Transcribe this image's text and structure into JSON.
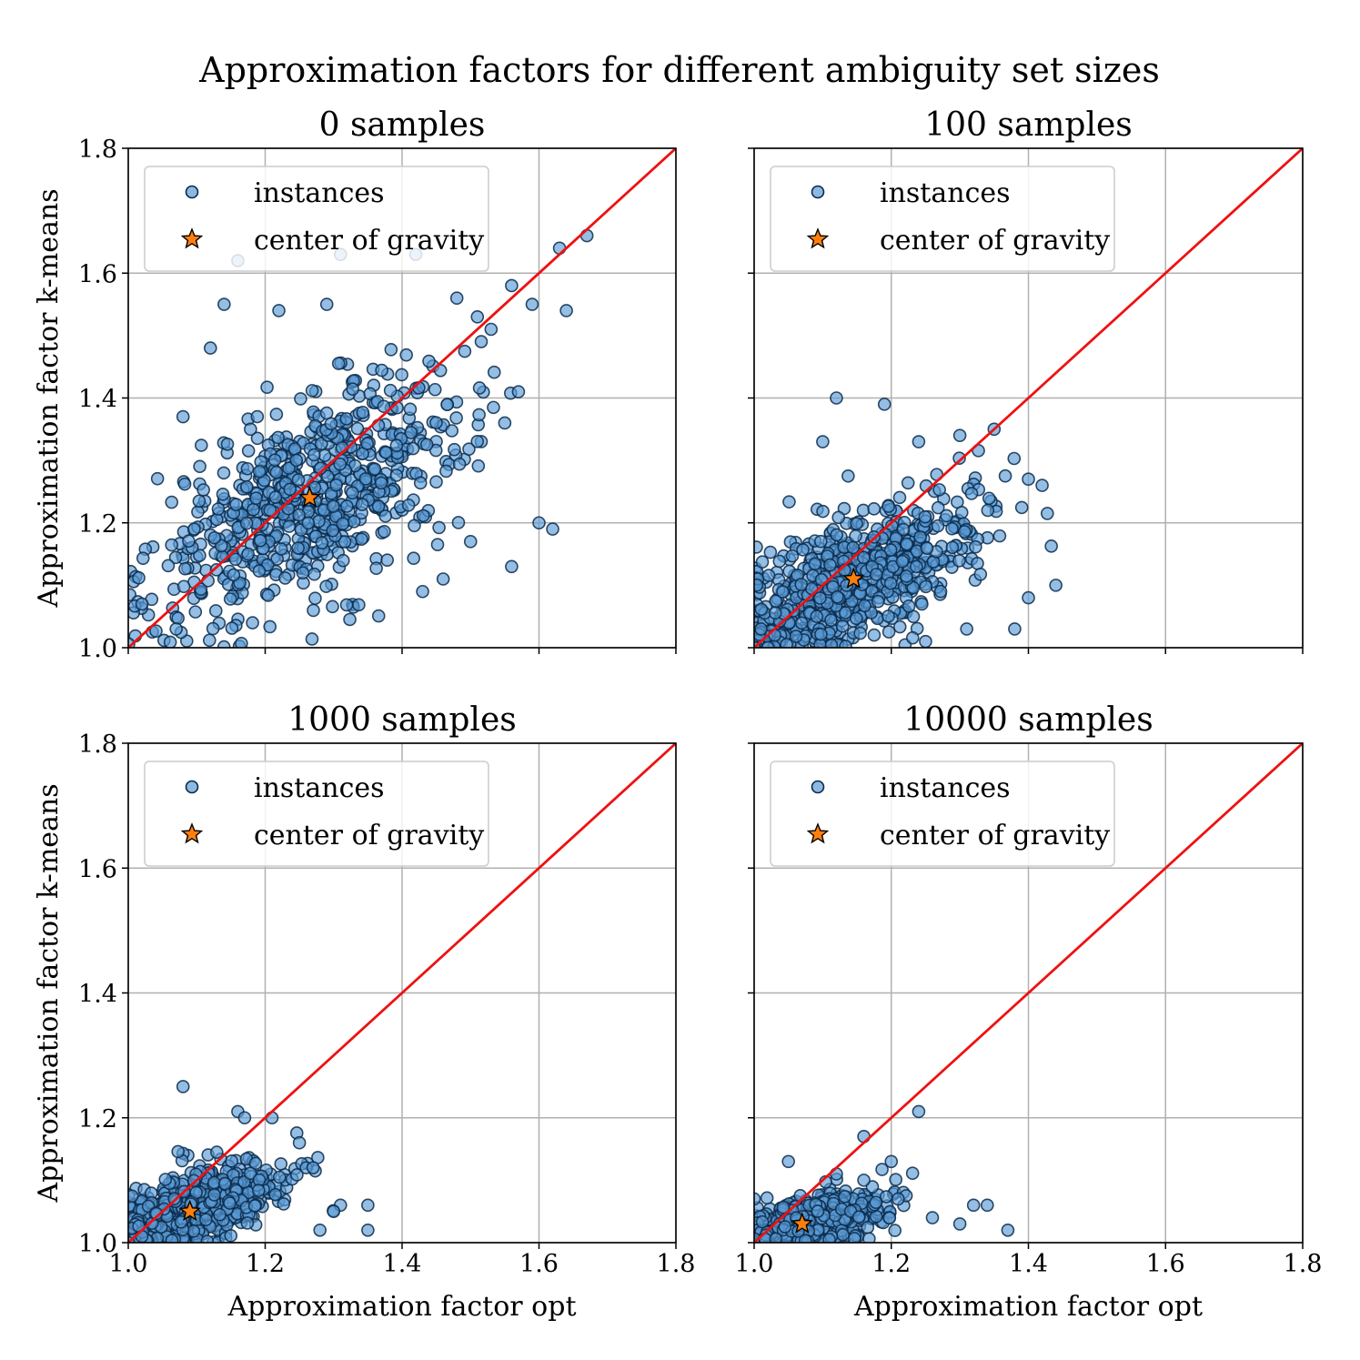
{
  "figure_title": "Approximation factors for different ambiguity set sizes",
  "colors": {
    "points_fill": "#5b9bd5",
    "points_edge": "#0b2a4a",
    "diagonal": "#ee1111",
    "star_fill": "#ff7f0e",
    "grid": "#b0b0b0"
  },
  "chart_data": [
    {
      "type": "scatter",
      "title": "0 samples",
      "xlabel": "",
      "ylabel": "Approximation factor k-means",
      "xlim": [
        1.0,
        1.8
      ],
      "ylim": [
        1.0,
        1.8
      ],
      "xticks": [
        "1.0",
        "1.2",
        "1.4",
        "1.6",
        "1.8"
      ],
      "yticks": [
        "1.0",
        "1.2",
        "1.4",
        "1.6",
        "1.8"
      ],
      "xticklabels_visible": false,
      "grid": true,
      "legend": {
        "placement": "top-left",
        "entries": [
          "instances",
          "center of gravity"
        ]
      },
      "reference_line": {
        "from": [
          1.0,
          1.0
        ],
        "to": [
          1.8,
          1.8
        ]
      },
      "center_of_gravity": [
        1.265,
        1.24
      ],
      "points_summary": {
        "center": [
          1.265,
          1.24
        ],
        "spread": [
          0.115,
          0.095
        ],
        "count": 700
      },
      "points": [
        [
          1.67,
          1.66
        ],
        [
          1.63,
          1.64
        ],
        [
          1.64,
          1.54
        ],
        [
          1.59,
          1.55
        ],
        [
          1.56,
          1.58
        ],
        [
          1.42,
          1.63
        ],
        [
          1.31,
          1.63
        ],
        [
          1.16,
          1.62
        ],
        [
          1.14,
          1.55
        ],
        [
          1.22,
          1.54
        ],
        [
          1.29,
          1.55
        ],
        [
          1.57,
          1.41
        ],
        [
          1.6,
          1.2
        ],
        [
          1.62,
          1.19
        ],
        [
          1.56,
          1.13
        ],
        [
          1.5,
          1.17
        ],
        [
          1.07,
          1.03
        ],
        [
          1.02,
          1.07
        ],
        [
          1.12,
          1.48
        ],
        [
          1.08,
          1.37
        ],
        [
          1.43,
          1.09
        ],
        [
          1.46,
          1.11
        ],
        [
          1.48,
          1.56
        ],
        [
          1.51,
          1.53
        ],
        [
          1.53,
          1.51
        ],
        [
          1.55,
          1.36
        ]
      ]
    },
    {
      "type": "scatter",
      "title": "100 samples",
      "xlabel": "",
      "ylabel": "",
      "xlim": [
        1.0,
        1.8
      ],
      "ylim": [
        1.0,
        1.8
      ],
      "xticks": [
        "1.0",
        "1.2",
        "1.4",
        "1.6",
        "1.8"
      ],
      "yticks": [
        "1.0",
        "1.2",
        "1.4",
        "1.6",
        "1.8"
      ],
      "xticklabels_visible": false,
      "yticklabels_visible": false,
      "grid": true,
      "legend": {
        "placement": "top-left",
        "entries": [
          "instances",
          "center of gravity"
        ]
      },
      "reference_line": {
        "from": [
          1.0,
          1.0
        ],
        "to": [
          1.8,
          1.8
        ]
      },
      "center_of_gravity": [
        1.145,
        1.11
      ],
      "points_summary": {
        "center": [
          1.145,
          1.11
        ],
        "spread": [
          0.09,
          0.065
        ],
        "count": 700
      },
      "points": [
        [
          1.12,
          1.4
        ],
        [
          1.19,
          1.39
        ],
        [
          1.35,
          1.35
        ],
        [
          1.3,
          1.34
        ],
        [
          1.24,
          1.33
        ],
        [
          1.1,
          1.33
        ],
        [
          1.4,
          1.27
        ],
        [
          1.42,
          1.26
        ],
        [
          1.44,
          1.1
        ],
        [
          1.4,
          1.08
        ],
        [
          1.38,
          1.03
        ],
        [
          1.31,
          1.03
        ],
        [
          1.25,
          1.01
        ],
        [
          1.0,
          1.0
        ],
        [
          1.01,
          1.03
        ],
        [
          1.03,
          1.02
        ]
      ]
    },
    {
      "type": "scatter",
      "title": "1000 samples",
      "xlabel": "Approximation factor opt",
      "ylabel": "Approximation factor k-means",
      "xlim": [
        1.0,
        1.8
      ],
      "ylim": [
        1.0,
        1.8
      ],
      "xticks": [
        "1.0",
        "1.2",
        "1.4",
        "1.6",
        "1.8"
      ],
      "yticks": [
        "1.0",
        "1.2",
        "1.4",
        "1.6",
        "1.8"
      ],
      "grid": true,
      "legend": {
        "placement": "top-left",
        "entries": [
          "instances",
          "center of gravity"
        ]
      },
      "reference_line": {
        "from": [
          1.0,
          1.0
        ],
        "to": [
          1.8,
          1.8
        ]
      },
      "center_of_gravity": [
        1.09,
        1.05
      ],
      "points_summary": {
        "center": [
          1.09,
          1.05
        ],
        "spread": [
          0.065,
          0.038
        ],
        "count": 700
      },
      "points": [
        [
          1.08,
          1.25
        ],
        [
          1.16,
          1.21
        ],
        [
          1.17,
          1.2
        ],
        [
          1.21,
          1.2
        ],
        [
          1.25,
          1.16
        ],
        [
          1.26,
          1.12
        ],
        [
          1.27,
          1.12
        ],
        [
          1.35,
          1.06
        ],
        [
          1.35,
          1.02
        ],
        [
          1.31,
          1.06
        ],
        [
          1.3,
          1.05
        ],
        [
          1.28,
          1.02
        ],
        [
          1.0,
          1.0
        ],
        [
          1.02,
          1.01
        ]
      ]
    },
    {
      "type": "scatter",
      "title": "10000 samples",
      "xlabel": "Approximation factor opt",
      "ylabel": "",
      "xlim": [
        1.0,
        1.8
      ],
      "ylim": [
        1.0,
        1.8
      ],
      "xticks": [
        "1.0",
        "1.2",
        "1.4",
        "1.6",
        "1.8"
      ],
      "yticks": [
        "1.0",
        "1.2",
        "1.4",
        "1.6",
        "1.8"
      ],
      "yticklabels_visible": false,
      "grid": true,
      "legend": {
        "placement": "top-left",
        "entries": [
          "instances",
          "center of gravity"
        ]
      },
      "reference_line": {
        "from": [
          1.0,
          1.0
        ],
        "to": [
          1.8,
          1.8
        ]
      },
      "center_of_gravity": [
        1.07,
        1.03
      ],
      "points_summary": {
        "center": [
          1.07,
          1.03
        ],
        "spread": [
          0.055,
          0.025
        ],
        "count": 700
      },
      "points": [
        [
          1.24,
          1.21
        ],
        [
          1.16,
          1.17
        ],
        [
          1.2,
          1.13
        ],
        [
          1.05,
          1.13
        ],
        [
          1.12,
          1.11
        ],
        [
          1.16,
          1.1
        ],
        [
          1.21,
          1.07
        ],
        [
          1.32,
          1.06
        ],
        [
          1.34,
          1.06
        ],
        [
          1.37,
          1.02
        ],
        [
          1.3,
          1.03
        ],
        [
          1.26,
          1.04
        ],
        [
          1.0,
          1.07
        ]
      ]
    }
  ]
}
